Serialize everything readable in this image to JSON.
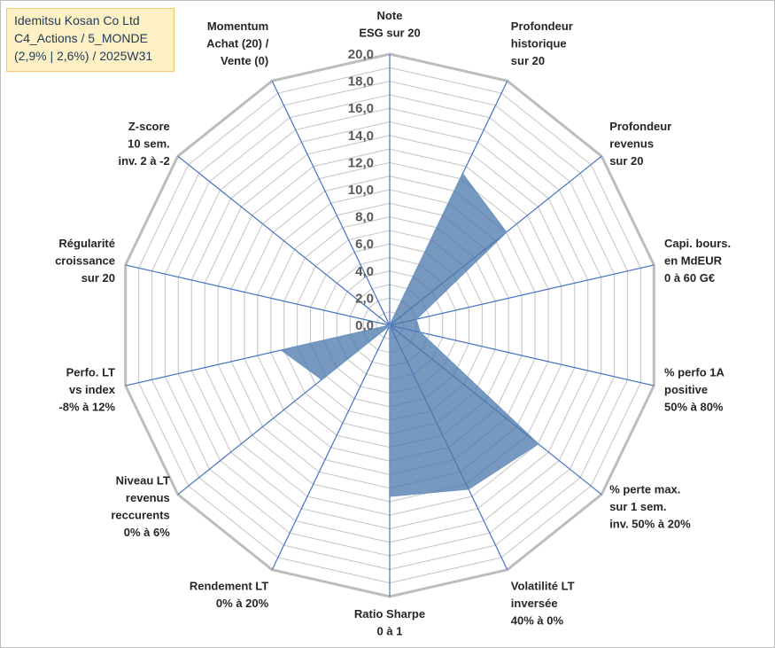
{
  "title": {
    "line1": "Idemitsu Kosan Co Ltd",
    "line2": "C4_Actions / 5_MONDE",
    "line3": "(2,9% | 2,6%) / 2025W31"
  },
  "chart_data": {
    "type": "radar",
    "rmin": 0,
    "rmax": 20,
    "ticks": [
      "0,0",
      "2,0",
      "4,0",
      "6,0",
      "8,0",
      "10,0",
      "12,0",
      "14,0",
      "16,0",
      "18,0",
      "20,0"
    ],
    "grid": true,
    "categories": [
      [
        "Note",
        "ESG sur 20"
      ],
      [
        "Profondeur",
        "historique",
        "sur 20"
      ],
      [
        "Profondeur",
        "revenus",
        "sur 20"
      ],
      [
        "Capi. bours.",
        "en MdEUR",
        "0 à 60 G€"
      ],
      [
        "% perfo 1A",
        "positive",
        "50% à 80%"
      ],
      [
        "% perte max.",
        "sur 1 sem.",
        "inv. 50% à 20%"
      ],
      [
        "Volatilité LT",
        "inversée",
        "40% à 0%"
      ],
      [
        "Ratio Sharpe",
        "0 à 1"
      ],
      [
        "Rendement LT",
        "0% à 20%"
      ],
      [
        "Niveau LT",
        "revenus",
        "reccurents",
        "0% à 6%"
      ],
      [
        "Perfo. LT",
        "vs index",
        "-8% à 12%"
      ],
      [
        "Régularité",
        "croissance",
        "sur 20"
      ],
      [
        "Z-score",
        "10 sem.",
        "inv. 2 à -2"
      ],
      [
        "Momentum",
        "Achat (20) /",
        "Vente (0)"
      ]
    ],
    "series": [
      {
        "values": [
          0,
          12.4,
          11.0,
          2.0,
          2.3,
          14.0,
          13.4,
          12.6,
          0,
          6.4,
          8.2,
          0,
          0,
          0
        ],
        "fill": "#4a77ab",
        "fill_opacity": 0.75,
        "stroke": "#6f95c2"
      }
    ],
    "colors": {
      "grid": "#c8c8c8",
      "outer": "#bdbdbd",
      "spoke": "#4472c4"
    }
  }
}
